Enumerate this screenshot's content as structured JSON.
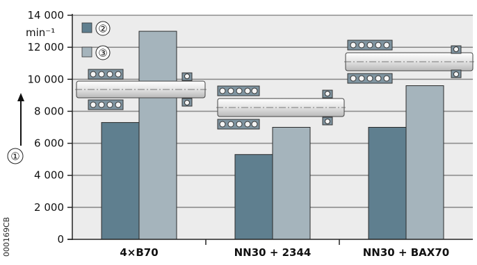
{
  "chart_data": {
    "type": "bar",
    "title": "",
    "xlabel": "",
    "ylabel": "",
    "y_unit": "min⁻¹",
    "ylim": [
      0,
      14000
    ],
    "yticks": [
      0,
      2000,
      4000,
      6000,
      8000,
      10000,
      12000,
      14000
    ],
    "ytick_labels": [
      "0",
      "2 000",
      "4 000",
      "6 000",
      "8 000",
      "10 000",
      "12 000",
      "14 000"
    ],
    "grid": true,
    "legend_position": "top-left",
    "categories": [
      "4×B70",
      "NN30 + 2344",
      "NN30 + BAX70"
    ],
    "series": [
      {
        "name": "②",
        "color": "#5f7f8f",
        "values": [
          7300,
          5300,
          7000
        ]
      },
      {
        "name": "③",
        "color": "#a5b4bc",
        "values": [
          13000,
          7000,
          9600
        ]
      }
    ],
    "axis_callout": "①",
    "figure_code": "000169CB"
  }
}
